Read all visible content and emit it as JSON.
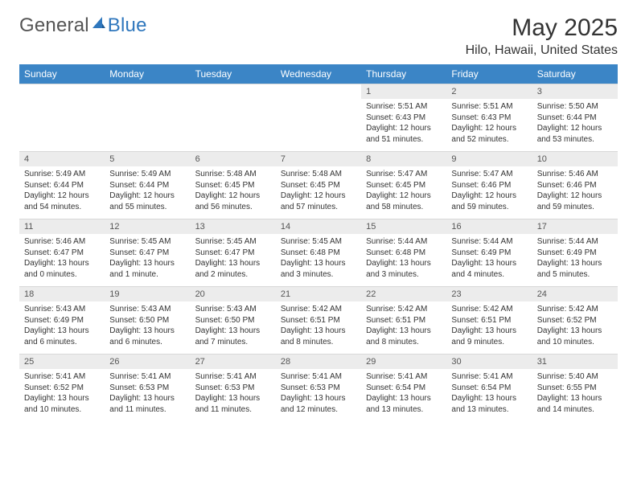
{
  "brand": {
    "word1": "General",
    "word2": "Blue",
    "color1": "#6f6f6f",
    "color2": "#2f77bd"
  },
  "title": "May 2025",
  "location": "Hilo, Hawaii, United States",
  "colors": {
    "header_bg": "#3b85c6",
    "header_text": "#ffffff",
    "daynum_bg": "#ececec",
    "border": "#d8d8d8",
    "body_text": "#333333"
  },
  "weekdays": [
    "Sunday",
    "Monday",
    "Tuesday",
    "Wednesday",
    "Thursday",
    "Friday",
    "Saturday"
  ],
  "layout": {
    "columns": 7,
    "rows": 5,
    "first_weekday_index": 4
  },
  "days": [
    {
      "n": 1,
      "sunrise": "5:51 AM",
      "sunset": "6:43 PM",
      "daylight": "12 hours and 51 minutes."
    },
    {
      "n": 2,
      "sunrise": "5:51 AM",
      "sunset": "6:43 PM",
      "daylight": "12 hours and 52 minutes."
    },
    {
      "n": 3,
      "sunrise": "5:50 AM",
      "sunset": "6:44 PM",
      "daylight": "12 hours and 53 minutes."
    },
    {
      "n": 4,
      "sunrise": "5:49 AM",
      "sunset": "6:44 PM",
      "daylight": "12 hours and 54 minutes."
    },
    {
      "n": 5,
      "sunrise": "5:49 AM",
      "sunset": "6:44 PM",
      "daylight": "12 hours and 55 minutes."
    },
    {
      "n": 6,
      "sunrise": "5:48 AM",
      "sunset": "6:45 PM",
      "daylight": "12 hours and 56 minutes."
    },
    {
      "n": 7,
      "sunrise": "5:48 AM",
      "sunset": "6:45 PM",
      "daylight": "12 hours and 57 minutes."
    },
    {
      "n": 8,
      "sunrise": "5:47 AM",
      "sunset": "6:45 PM",
      "daylight": "12 hours and 58 minutes."
    },
    {
      "n": 9,
      "sunrise": "5:47 AM",
      "sunset": "6:46 PM",
      "daylight": "12 hours and 59 minutes."
    },
    {
      "n": 10,
      "sunrise": "5:46 AM",
      "sunset": "6:46 PM",
      "daylight": "12 hours and 59 minutes."
    },
    {
      "n": 11,
      "sunrise": "5:46 AM",
      "sunset": "6:47 PM",
      "daylight": "13 hours and 0 minutes."
    },
    {
      "n": 12,
      "sunrise": "5:45 AM",
      "sunset": "6:47 PM",
      "daylight": "13 hours and 1 minute."
    },
    {
      "n": 13,
      "sunrise": "5:45 AM",
      "sunset": "6:47 PM",
      "daylight": "13 hours and 2 minutes."
    },
    {
      "n": 14,
      "sunrise": "5:45 AM",
      "sunset": "6:48 PM",
      "daylight": "13 hours and 3 minutes."
    },
    {
      "n": 15,
      "sunrise": "5:44 AM",
      "sunset": "6:48 PM",
      "daylight": "13 hours and 3 minutes."
    },
    {
      "n": 16,
      "sunrise": "5:44 AM",
      "sunset": "6:49 PM",
      "daylight": "13 hours and 4 minutes."
    },
    {
      "n": 17,
      "sunrise": "5:44 AM",
      "sunset": "6:49 PM",
      "daylight": "13 hours and 5 minutes."
    },
    {
      "n": 18,
      "sunrise": "5:43 AM",
      "sunset": "6:49 PM",
      "daylight": "13 hours and 6 minutes."
    },
    {
      "n": 19,
      "sunrise": "5:43 AM",
      "sunset": "6:50 PM",
      "daylight": "13 hours and 6 minutes."
    },
    {
      "n": 20,
      "sunrise": "5:43 AM",
      "sunset": "6:50 PM",
      "daylight": "13 hours and 7 minutes."
    },
    {
      "n": 21,
      "sunrise": "5:42 AM",
      "sunset": "6:51 PM",
      "daylight": "13 hours and 8 minutes."
    },
    {
      "n": 22,
      "sunrise": "5:42 AM",
      "sunset": "6:51 PM",
      "daylight": "13 hours and 8 minutes."
    },
    {
      "n": 23,
      "sunrise": "5:42 AM",
      "sunset": "6:51 PM",
      "daylight": "13 hours and 9 minutes."
    },
    {
      "n": 24,
      "sunrise": "5:42 AM",
      "sunset": "6:52 PM",
      "daylight": "13 hours and 10 minutes."
    },
    {
      "n": 25,
      "sunrise": "5:41 AM",
      "sunset": "6:52 PM",
      "daylight": "13 hours and 10 minutes."
    },
    {
      "n": 26,
      "sunrise": "5:41 AM",
      "sunset": "6:53 PM",
      "daylight": "13 hours and 11 minutes."
    },
    {
      "n": 27,
      "sunrise": "5:41 AM",
      "sunset": "6:53 PM",
      "daylight": "13 hours and 11 minutes."
    },
    {
      "n": 28,
      "sunrise": "5:41 AM",
      "sunset": "6:53 PM",
      "daylight": "13 hours and 12 minutes."
    },
    {
      "n": 29,
      "sunrise": "5:41 AM",
      "sunset": "6:54 PM",
      "daylight": "13 hours and 13 minutes."
    },
    {
      "n": 30,
      "sunrise": "5:41 AM",
      "sunset": "6:54 PM",
      "daylight": "13 hours and 13 minutes."
    },
    {
      "n": 31,
      "sunrise": "5:40 AM",
      "sunset": "6:55 PM",
      "daylight": "13 hours and 14 minutes."
    }
  ],
  "labels": {
    "sunrise": "Sunrise:",
    "sunset": "Sunset:",
    "daylight": "Daylight:"
  }
}
